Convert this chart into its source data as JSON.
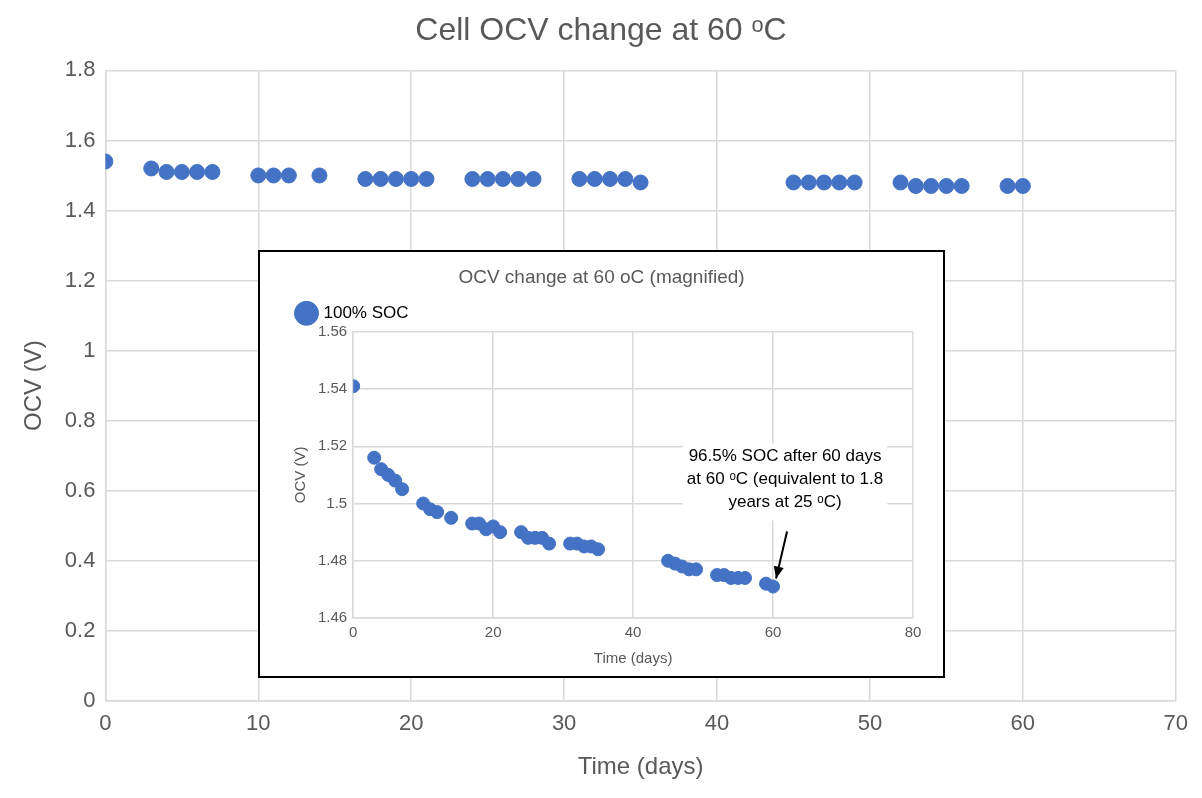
{
  "chart_data": [
    {
      "type": "scatter",
      "title": "Cell OCV change at 60 ᵒC",
      "xlabel": "Time (days)",
      "ylabel": "OCV (V)",
      "x": [
        0,
        3,
        4,
        5,
        6,
        7,
        10,
        11,
        12,
        14,
        17,
        18,
        19,
        20,
        21,
        24,
        25,
        26,
        27,
        28,
        31,
        32,
        33,
        34,
        35,
        45,
        46,
        47,
        48,
        49,
        52,
        53,
        54,
        55,
        56,
        59,
        60
      ],
      "series": [
        {
          "color": "#4472c4",
          "values": [
            1.54,
            1.52,
            1.51,
            1.51,
            1.51,
            1.51,
            1.5,
            1.5,
            1.5,
            1.5,
            1.49,
            1.49,
            1.49,
            1.49,
            1.49,
            1.49,
            1.49,
            1.49,
            1.49,
            1.49,
            1.49,
            1.49,
            1.49,
            1.49,
            1.48,
            1.48,
            1.48,
            1.48,
            1.48,
            1.48,
            1.48,
            1.47,
            1.47,
            1.47,
            1.47,
            1.47,
            1.47
          ]
        }
      ],
      "xlim": [
        0,
        70
      ],
      "xticks": [
        0,
        10,
        20,
        30,
        40,
        50,
        60,
        70
      ],
      "ylim": [
        0,
        1.8
      ],
      "yticks": [
        0,
        0.2,
        0.4,
        0.6,
        0.8,
        1,
        1.2,
        1.4,
        1.6,
        1.8
      ],
      "grid": true,
      "legend": false,
      "marker": "circle"
    },
    {
      "type": "scatter",
      "title": "OCV change at 60 oC (magnified)",
      "xlabel": "Time (days)",
      "ylabel": "OCV (V)",
      "x": [
        0,
        3,
        4,
        5,
        6,
        7,
        10,
        11,
        12,
        14,
        17,
        18,
        19,
        20,
        21,
        24,
        25,
        26,
        27,
        28,
        31,
        32,
        33,
        34,
        35,
        45,
        46,
        47,
        48,
        49,
        52,
        53,
        54,
        55,
        56,
        59,
        60
      ],
      "series": [
        {
          "name": "100% SOC",
          "color": "#4472c4",
          "values": [
            1.541,
            1.516,
            1.512,
            1.51,
            1.508,
            1.505,
            1.5,
            1.498,
            1.497,
            1.495,
            1.493,
            1.493,
            1.491,
            1.492,
            1.49,
            1.49,
            1.488,
            1.488,
            1.488,
            1.486,
            1.486,
            1.486,
            1.485,
            1.485,
            1.484,
            1.48,
            1.479,
            1.478,
            1.477,
            1.477,
            1.475,
            1.475,
            1.474,
            1.474,
            1.474,
            1.472,
            1.471
          ]
        }
      ],
      "xlim": [
        0,
        80
      ],
      "xticks": [
        0,
        20,
        40,
        60,
        80
      ],
      "ylim": [
        1.46,
        1.56
      ],
      "yticks": [
        1.46,
        1.48,
        1.5,
        1.52,
        1.54,
        1.56
      ],
      "grid": true,
      "legend": "top left",
      "marker": "circle",
      "annotations": [
        {
          "text": "96.5% SOC after 60 days at 60 ᵒC (equivalent to 1.8 years at 25 ᵒC)",
          "x": 60,
          "y": 1.471
        }
      ]
    }
  ]
}
